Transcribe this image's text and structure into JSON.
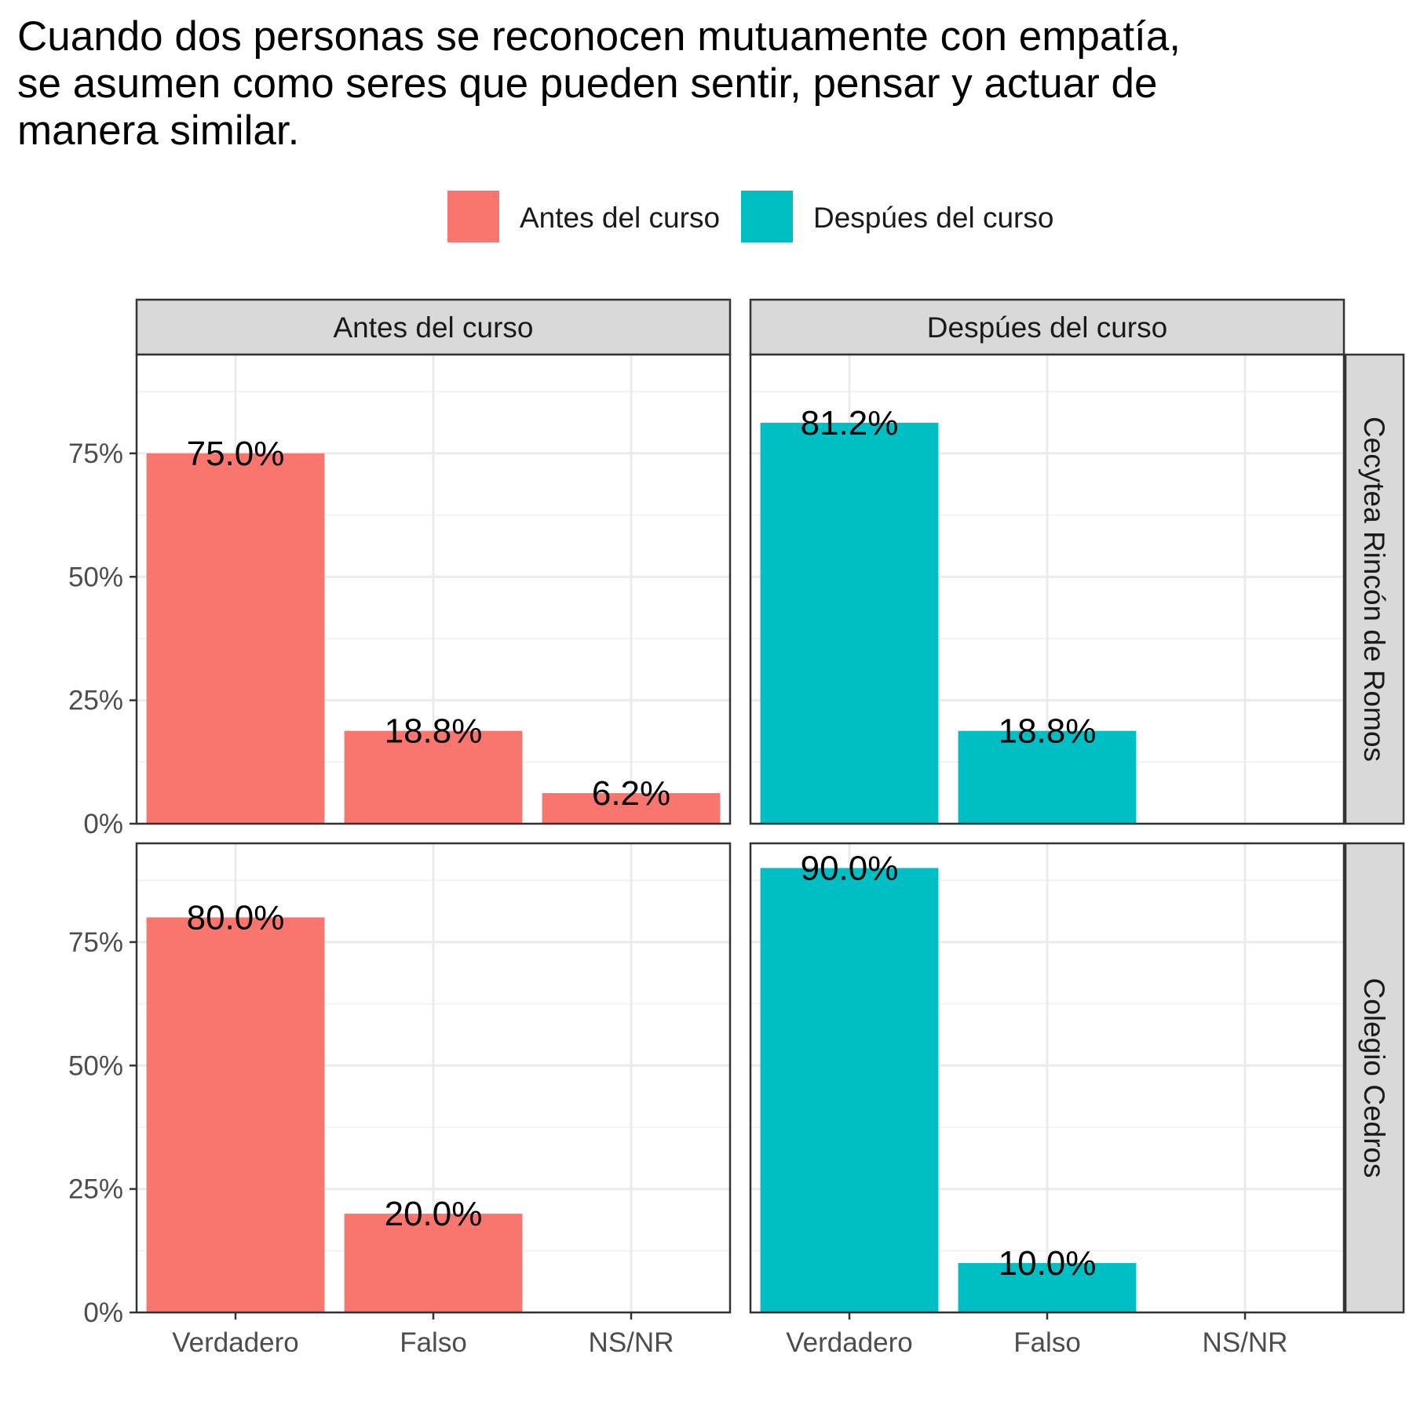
{
  "chart_data": {
    "type": "bar",
    "title": "Cuando dos personas se reconocen mutuamente con empatía, se asumen como seres que pueden sentir, pensar y actuar de manera similar.",
    "title_lines": [
      "Cuando dos personas se reconocen mutuamente con empatía,",
      "se asumen como seres que pueden sentir, pensar y actuar de",
      "manera similar."
    ],
    "xlabel": "",
    "ylabel": "",
    "categories": [
      "Verdadero",
      "Falso",
      "NS/NR"
    ],
    "ylim": [
      0,
      0.95
    ],
    "yticks": [
      0,
      0.25,
      0.5,
      0.75
    ],
    "ytick_labels": [
      "0%",
      "25%",
      "50%",
      "75%"
    ],
    "grid": true,
    "legend_position": "top",
    "legend": [
      {
        "label": "Antes del curso",
        "color": "#F8766D"
      },
      {
        "label": "Despúes del curso",
        "color": "#00BFC4"
      }
    ],
    "column_facets": [
      "Antes del curso",
      "Despúes del curso"
    ],
    "row_facets": [
      "Cecytea Rincón de Romos",
      "Colegio Cedros"
    ],
    "panels": [
      {
        "row": "Cecytea Rincón de Romos",
        "column": "Antes del curso",
        "color": "#F8766D",
        "values": [
          0.75,
          0.188,
          0.062
        ],
        "labels": [
          "75.0%",
          "18.8%",
          "6.2%"
        ]
      },
      {
        "row": "Cecytea Rincón de Romos",
        "column": "Despúes del curso",
        "color": "#00BFC4",
        "values": [
          0.812,
          0.188,
          null
        ],
        "labels": [
          "81.2%",
          "18.8%",
          null
        ]
      },
      {
        "row": "Colegio Cedros",
        "column": "Antes del curso",
        "color": "#F8766D",
        "values": [
          0.8,
          0.2,
          null
        ],
        "labels": [
          "80.0%",
          "20.0%",
          null
        ]
      },
      {
        "row": "Colegio Cedros",
        "column": "Despúes del curso",
        "color": "#00BFC4",
        "values": [
          0.9,
          0.1,
          null
        ],
        "labels": [
          "90.0%",
          "10.0%",
          null
        ]
      }
    ]
  }
}
